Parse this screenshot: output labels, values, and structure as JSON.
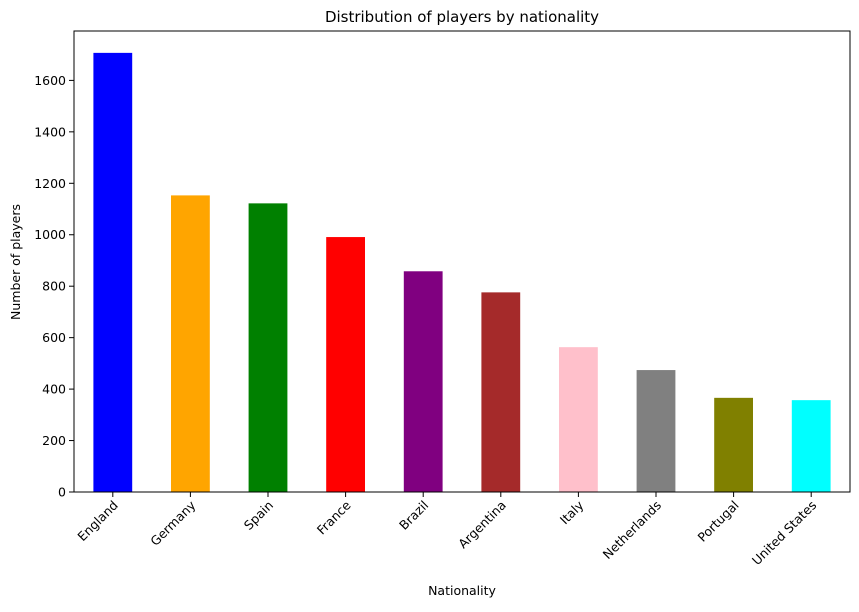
{
  "chart_data": {
    "type": "bar",
    "title": "Distribution of players by nationality",
    "xlabel": "Nationality",
    "ylabel": "Number of players",
    "categories": [
      "England",
      "Germany",
      "Spain",
      "France",
      "Brazil",
      "Argentina",
      "Italy",
      "Netherlands",
      "Portugal",
      "United States"
    ],
    "values": [
      1707,
      1153,
      1122,
      991,
      858,
      776,
      563,
      474,
      366,
      357
    ],
    "colors": [
      "#0000ff",
      "#ffa500",
      "#008000",
      "#ff0000",
      "#800080",
      "#a52a2a",
      "#ffc0cb",
      "#808080",
      "#808000",
      "#00ffff"
    ],
    "ylim": [
      0,
      1792
    ],
    "yticks": [
      0,
      200,
      400,
      600,
      800,
      1000,
      1200,
      1400,
      1600
    ],
    "grid": false,
    "legend": "none"
  }
}
